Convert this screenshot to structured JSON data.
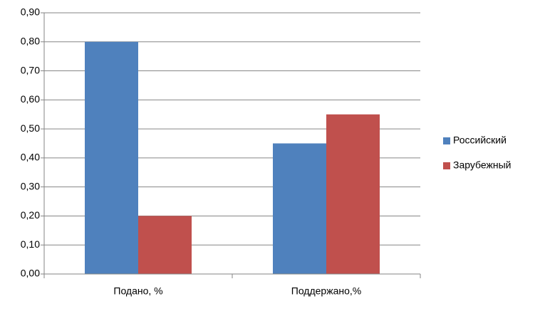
{
  "chart_data": {
    "type": "bar",
    "categories": [
      "Подано, %",
      "Поддержано,%"
    ],
    "series": [
      {
        "name": "Российский",
        "color": "#4f81bd",
        "values": [
          0.8,
          0.45
        ]
      },
      {
        "name": "Зарубежный",
        "color": "#c0504d",
        "values": [
          0.2,
          0.55
        ]
      }
    ],
    "ylim": [
      0,
      0.9
    ],
    "yticks": [
      {
        "value": 0,
        "label": "0,00"
      },
      {
        "value": 0.1,
        "label": "0,10"
      },
      {
        "value": 0.2,
        "label": "0,20"
      },
      {
        "value": 0.3,
        "label": "0,30"
      },
      {
        "value": 0.4,
        "label": "0,40"
      },
      {
        "value": 0.5,
        "label": "0,50"
      },
      {
        "value": 0.6,
        "label": "0,60"
      },
      {
        "value": 0.7,
        "label": "0,70"
      },
      {
        "value": 0.8,
        "label": "0,80"
      },
      {
        "value": 0.9,
        "label": "0,90"
      }
    ],
    "grid": true,
    "legend": "right"
  }
}
